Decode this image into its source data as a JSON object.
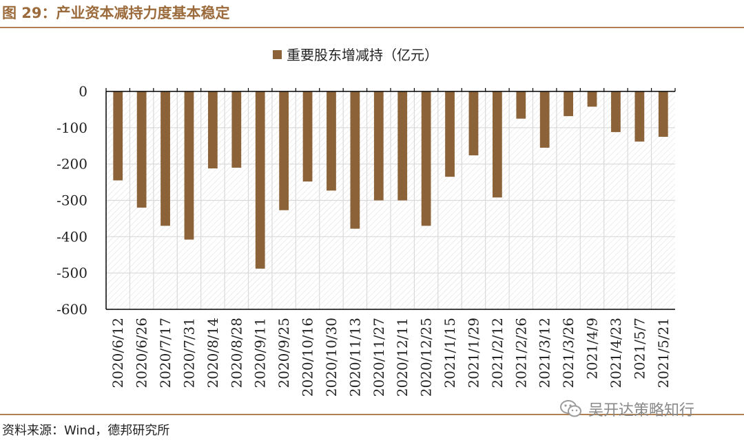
{
  "header": {
    "title": "图 29：产业资本减持力度基本稳定"
  },
  "footer": {
    "source": "资料来源：Wind，德邦研究所",
    "watermark": "吴开达策略知行",
    "watermark_icon": "wechat-icon"
  },
  "colors": {
    "accent": "#9C6B3C",
    "bar": "#8C6239",
    "rule": "#B07F52"
  },
  "chart_data": {
    "type": "bar",
    "legend_position": "top-center",
    "grid": true,
    "ylim": [
      -600,
      0
    ],
    "yticks": [
      0,
      -100,
      -200,
      -300,
      -400,
      -500,
      -600
    ],
    "categories": [
      "2020/6/12",
      "2020/6/26",
      "2020/7/17",
      "2020/7/31",
      "2020/8/14",
      "2020/8/28",
      "2020/9/11",
      "2020/9/25",
      "2020/10/16",
      "2020/10/30",
      "2020/11/13",
      "2020/11/27",
      "2020/12/11",
      "2020/12/25",
      "2021/1/15",
      "2021/1/29",
      "2021/2/12",
      "2021/2/26",
      "2021/3/12",
      "2021/3/26",
      "2021/4/9",
      "2021/4/23",
      "2021/5/7",
      "2021/5/21"
    ],
    "series": [
      {
        "name": "重要股东增减持（亿元）",
        "values": [
          -245,
          -320,
          -370,
          -408,
          -212,
          -210,
          -488,
          -327,
          -248,
          -273,
          -378,
          -300,
          -300,
          -370,
          -235,
          -176,
          -292,
          -75,
          -155,
          -68,
          -42,
          -112,
          -138,
          -125
        ]
      }
    ]
  }
}
